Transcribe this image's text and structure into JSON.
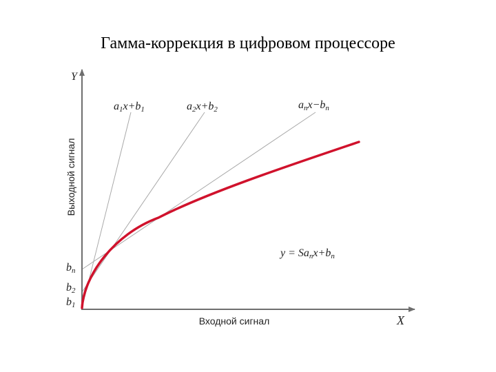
{
  "title": "Гамма-коррекция в цифровом процессоре",
  "axes": {
    "x_letter": "X",
    "y_letter": "Y",
    "x_label": "Входной сигнал",
    "y_label": "Выходной сигнал"
  },
  "intercepts": {
    "bn": {
      "base": "b",
      "sub": "n"
    },
    "b2": {
      "base": "b",
      "sub": "2"
    },
    "b1": {
      "base": "b",
      "sub": "1"
    }
  },
  "tangents": [
    {
      "a": "a",
      "a_sub": "1",
      "mid": "x+",
      "b": "b",
      "b_sub": "1"
    },
    {
      "a": "a",
      "a_sub": "2",
      "mid": "x+",
      "b": "b",
      "b_sub": "2"
    },
    {
      "a": "a",
      "a_sub": "n",
      "mid": "x−",
      "b": "b",
      "b_sub": "n"
    }
  ],
  "formula": {
    "prefix": "y = Sa",
    "a_sub": "n",
    "mid": "x+",
    "b": "b",
    "b_sub": "n"
  },
  "colors": {
    "curve": "#d0122c",
    "axis": "#6e6e6e",
    "tangent": "#a8a8a8"
  }
}
